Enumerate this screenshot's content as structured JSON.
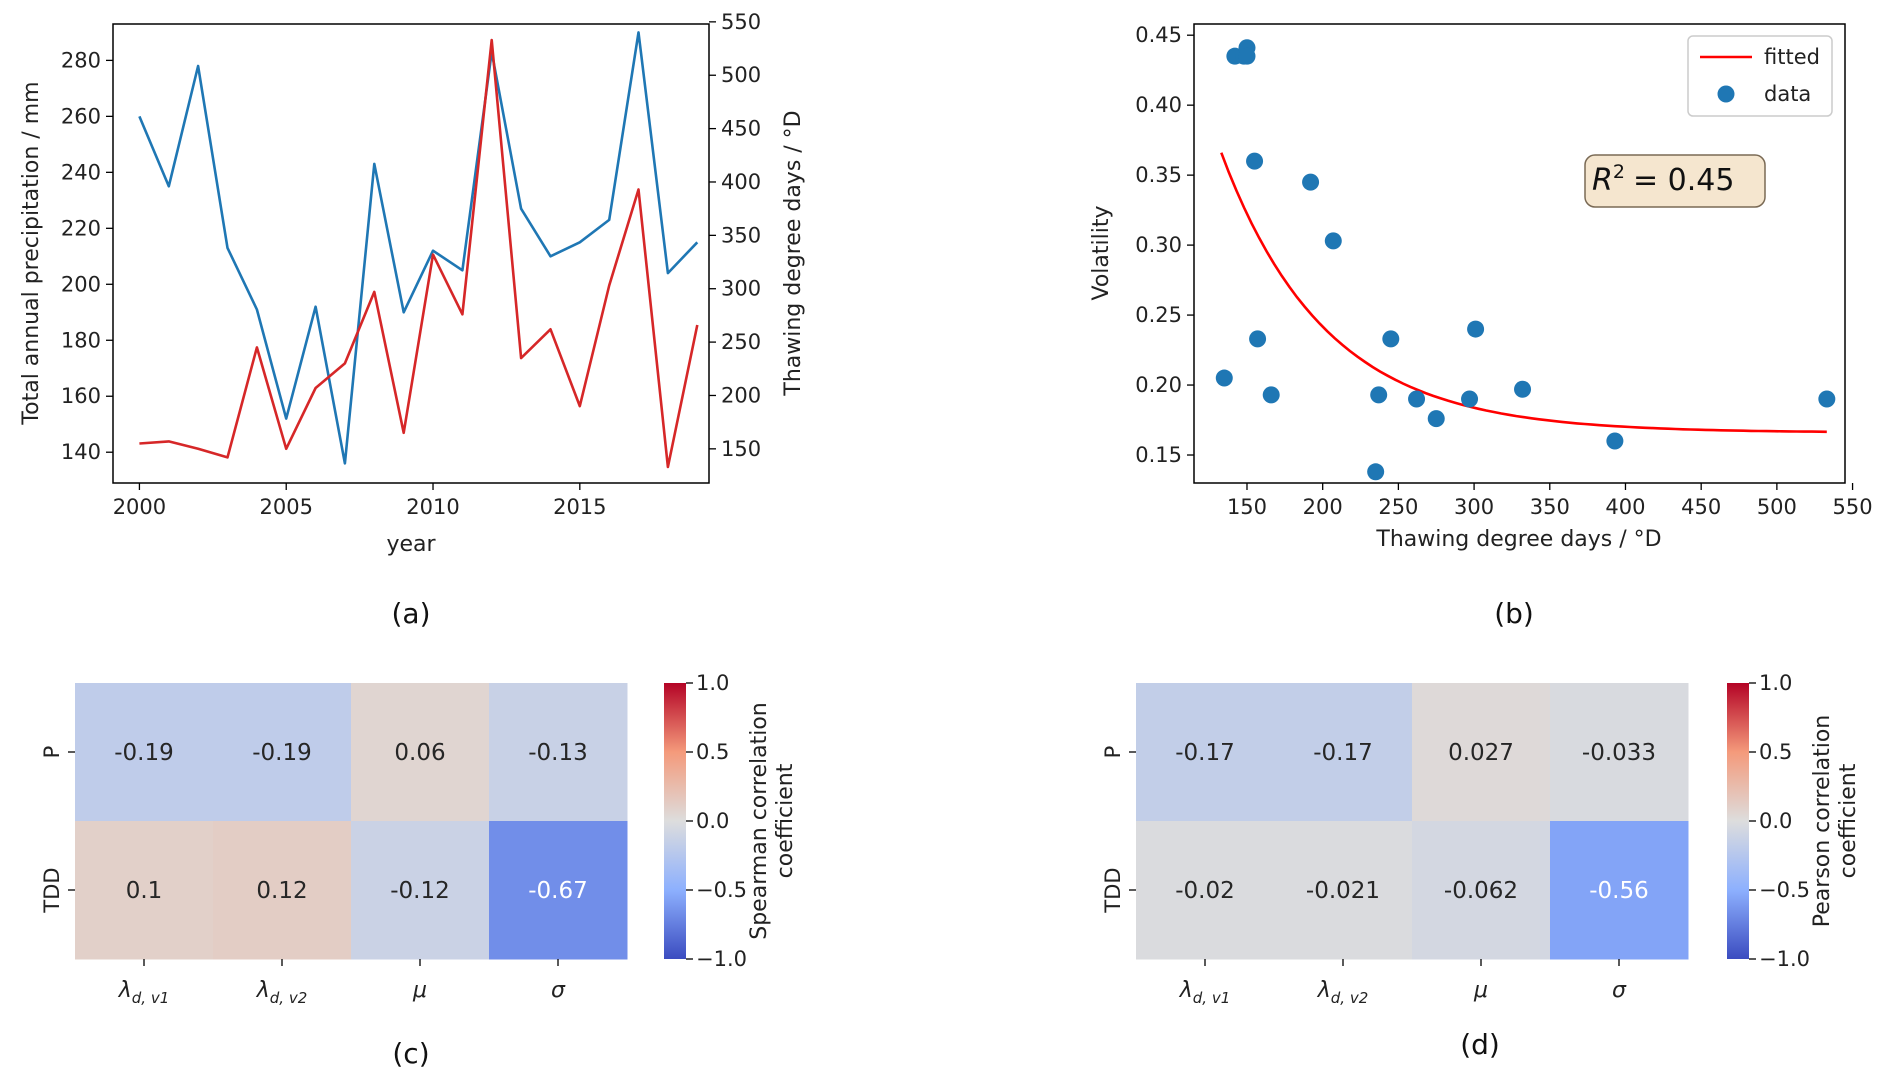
{
  "colors": {
    "precip": "#1f77b4",
    "tdd": "#d62728",
    "fit": "#ff0000",
    "scatter": "#1f77b4",
    "r2_box_fill": "#f5e6cf",
    "r2_box_stroke": "#7a6a55"
  },
  "chart_data": [
    {
      "panel": "a",
      "panel_label": "(a)",
      "type": "line",
      "xlabel": "year",
      "ylabel_left": "Total annual precipitation / mm",
      "ylabel_right": "Thawing degree days / °D",
      "x_ticks": [
        2000,
        2005,
        2010,
        2015
      ],
      "y_left_ticks": [
        140,
        160,
        180,
        200,
        220,
        240,
        260,
        280
      ],
      "y_right_ticks": [
        150,
        200,
        250,
        300,
        350,
        400,
        450,
        500,
        550
      ],
      "xlim": [
        1999.1,
        2019.4
      ],
      "ylim_left": [
        129,
        293
      ],
      "ylim_right": [
        118,
        548
      ],
      "x": [
        2000,
        2001,
        2002,
        2003,
        2004,
        2005,
        2006,
        2007,
        2008,
        2009,
        2010,
        2011,
        2012,
        2013,
        2014,
        2015,
        2016,
        2017,
        2018,
        2019
      ],
      "series": [
        {
          "axis": "left",
          "color_key": "precip",
          "values": [
            260,
            235,
            278,
            213,
            191,
            152,
            192,
            136,
            243,
            190,
            212,
            205,
            283,
            227,
            210,
            215,
            223,
            290,
            204,
            215
          ]
        },
        {
          "axis": "right",
          "color_key": "tdd",
          "values": [
            155,
            157,
            150,
            142,
            245,
            150,
            207,
            230,
            297,
            165,
            332,
            276,
            533,
            235,
            262,
            190,
            303,
            393,
            133,
            266
          ]
        }
      ]
    },
    {
      "panel": "b",
      "panel_label": "(b)",
      "type": "scatter",
      "xlabel": "Thawing degree days / °D",
      "ylabel": "Volatility",
      "x_ticks": [
        150,
        200,
        250,
        300,
        350,
        400,
        450,
        500,
        550
      ],
      "y_ticks": [
        "0.15",
        "0.20",
        "0.25",
        "0.30",
        "0.35",
        "0.40",
        "0.45"
      ],
      "xlim": [
        115,
        545
      ],
      "ylim": [
        0.13,
        0.458
      ],
      "legend": {
        "position": "top-right",
        "entries": [
          "fitted",
          "data"
        ]
      },
      "annotation": {
        "text": "= 0.45",
        "r_symbol": "R",
        "superscript": "2"
      },
      "points": [
        {
          "x": 135,
          "y": 0.205
        },
        {
          "x": 142,
          "y": 0.435
        },
        {
          "x": 148,
          "y": 0.435
        },
        {
          "x": 150,
          "y": 0.441
        },
        {
          "x": 150,
          "y": 0.435
        },
        {
          "x": 155,
          "y": 0.36
        },
        {
          "x": 157,
          "y": 0.233
        },
        {
          "x": 166,
          "y": 0.193
        },
        {
          "x": 192,
          "y": 0.345
        },
        {
          "x": 207,
          "y": 0.303
        },
        {
          "x": 235,
          "y": 0.138
        },
        {
          "x": 237,
          "y": 0.193
        },
        {
          "x": 245,
          "y": 0.233
        },
        {
          "x": 262,
          "y": 0.19
        },
        {
          "x": 275,
          "y": 0.176
        },
        {
          "x": 297,
          "y": 0.19
        },
        {
          "x": 301,
          "y": 0.24
        },
        {
          "x": 332,
          "y": 0.197
        },
        {
          "x": 393,
          "y": 0.16
        },
        {
          "x": 533,
          "y": 0.19
        }
      ],
      "fit": {
        "model": "exponential decay",
        "x_range": [
          133,
          533
        ],
        "a": 0.2,
        "b": 0.0145,
        "c": 0.166
      }
    },
    {
      "panel": "c",
      "panel_label": "(c)",
      "type": "heatmap",
      "rows": [
        "P",
        "TDD"
      ],
      "cols": [
        {
          "sym": "λ",
          "sub": "d, v1"
        },
        {
          "sym": "λ",
          "sub": "d, v2"
        },
        {
          "sym": "μ",
          "sub": ""
        },
        {
          "sym": "σ",
          "sub": ""
        }
      ],
      "values": [
        [
          -0.19,
          -0.19,
          0.06,
          -0.13
        ],
        [
          0.1,
          0.12,
          -0.12,
          -0.67
        ]
      ],
      "labels": [
        [
          "-0.19",
          "-0.19",
          "0.06",
          "-0.13"
        ],
        [
          "0.1",
          "0.12",
          "-0.12",
          "-0.67"
        ]
      ],
      "colorbar_label": [
        "Spearman correlation",
        "coefficient"
      ],
      "colorbar_ticks": [
        "1.0",
        "0.5",
        "0.0",
        "−0.5",
        "−1.0"
      ],
      "vlim": [
        -1,
        1
      ]
    },
    {
      "panel": "d",
      "panel_label": "(d)",
      "type": "heatmap",
      "rows": [
        "P",
        "TDD"
      ],
      "cols": [
        {
          "sym": "λ",
          "sub": "d, v1"
        },
        {
          "sym": "λ",
          "sub": "d, v2"
        },
        {
          "sym": "μ",
          "sub": ""
        },
        {
          "sym": "σ",
          "sub": ""
        }
      ],
      "values": [
        [
          -0.17,
          -0.17,
          0.027,
          -0.033
        ],
        [
          -0.02,
          -0.021,
          -0.062,
          -0.56
        ]
      ],
      "labels": [
        [
          "-0.17",
          "-0.17",
          "0.027",
          "-0.033"
        ],
        [
          "-0.02",
          "-0.021",
          "-0.062",
          "-0.56"
        ]
      ],
      "colorbar_label": [
        "Pearson correlation",
        "coefficient"
      ],
      "colorbar_ticks": [
        "1.0",
        "0.5",
        "0.0",
        "−0.5",
        "−1.0"
      ],
      "vlim": [
        -1,
        1
      ]
    }
  ]
}
